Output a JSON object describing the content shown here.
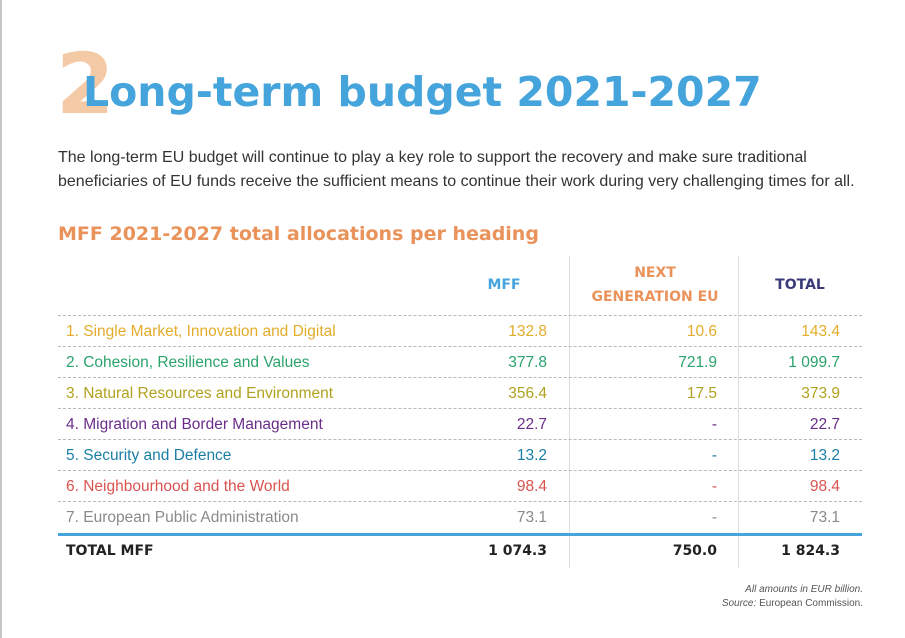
{
  "section": {
    "number": "2",
    "number_color": "#f4c9a6"
  },
  "title": "Long-term budget 2021-2027",
  "intro": "The long-term EU budget will continue to play a key role to support the recovery and make sure traditional beneficiaries of EU funds receive the sufficient means to continue their work during very challenging times for all.",
  "subtitle": "MFF 2021-2027 total allocations per heading",
  "table": {
    "headers": {
      "mff": "MFF",
      "ngeu_line1": "NEXT",
      "ngeu_line2": "GENERATION EU",
      "total": "TOTAL"
    },
    "header_colors": {
      "mff": "#44a4db",
      "ngeu": "#e9925a",
      "total": "#3a3a7a"
    },
    "rows": [
      {
        "label": "1. Single Market, Innovation and Digital",
        "mff": "132.8",
        "ngeu": "10.6",
        "total": "143.4",
        "color": "#e3ac2a"
      },
      {
        "label": "2. Cohesion, Resilience and Values",
        "mff": "377.8",
        "ngeu": "721.9",
        "total": "1 099.7",
        "color": "#2aa36b"
      },
      {
        "label": "3. Natural Resources and Environment",
        "mff": "356.4",
        "ngeu": "17.5",
        "total": "373.9",
        "color": "#b0a21f"
      },
      {
        "label": "4. Migration and Border Management",
        "mff": "22.7",
        "ngeu": "-",
        "total": "22.7",
        "color": "#6a2d8a"
      },
      {
        "label": "5. Security and Defence",
        "mff": "13.2",
        "ngeu": "-",
        "total": "13.2",
        "color": "#1a7fa6"
      },
      {
        "label": "6. Neighbourhood and the World",
        "mff": "98.4",
        "ngeu": "-",
        "total": "98.4",
        "color": "#d9534f"
      },
      {
        "label": "7. European Public Administration",
        "mff": "73.1",
        "ngeu": "-",
        "total": "73.1",
        "color": "#8a8a8a"
      }
    ],
    "total_row": {
      "label": "TOTAL MFF",
      "mff": "1 074.3",
      "ngeu": "750.0",
      "total": "1 824.3"
    }
  },
  "footnote": {
    "amounts": "All amounts in EUR billion.",
    "source_label": "Source:",
    "source_value": "European Commission."
  }
}
